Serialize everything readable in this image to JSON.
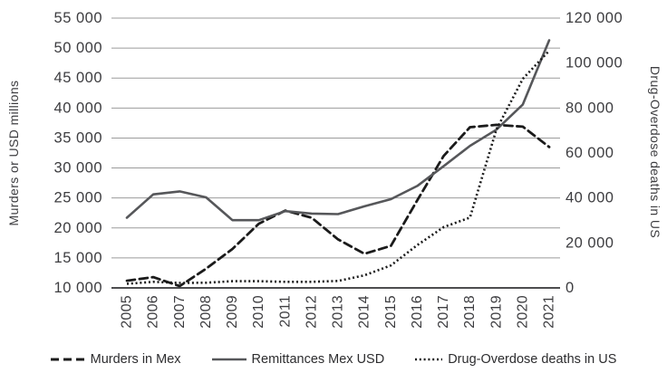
{
  "chart_data": {
    "type": "line",
    "title": "",
    "x": [
      2005,
      2006,
      2007,
      2008,
      2009,
      2010,
      2011,
      2012,
      2013,
      2014,
      2015,
      2016,
      2017,
      2018,
      2019,
      2020,
      2021
    ],
    "series": [
      {
        "name": "Murders in Mex",
        "axis": "left",
        "style": "dashed",
        "color": "#1b1b1b",
        "values": [
          11200,
          11800,
          10300,
          13200,
          16500,
          20700,
          22900,
          21700,
          18100,
          15700,
          17000,
          24600,
          32000,
          36800,
          37200,
          36900,
          33500
        ]
      },
      {
        "name": "Remittances Mex USD",
        "axis": "left",
        "style": "solid",
        "color": "#56575a",
        "values": [
          21700,
          25600,
          26100,
          25100,
          21300,
          21300,
          22800,
          22400,
          22300,
          23600,
          24800,
          27000,
          30300,
          33700,
          36400,
          40600,
          51300
        ]
      },
      {
        "name": "Drug-Overdose deaths in US",
        "axis": "right",
        "style": "dotted",
        "color": "#1b1b1b",
        "values": [
          1800,
          2700,
          2200,
          2300,
          3000,
          3000,
          2700,
          2700,
          3100,
          5600,
          10000,
          19000,
          27000,
          31300,
          70500,
          93000,
          105500
        ]
      }
    ],
    "ylabel_left": "Murders or USD millions",
    "ylabel_right": "Drug-Overdose deaths in US",
    "yleft_ticks": [
      10000,
      15000,
      20000,
      25000,
      30000,
      35000,
      40000,
      45000,
      50000,
      55000
    ],
    "yright_ticks": [
      0,
      20000,
      40000,
      60000,
      80000,
      100000,
      120000
    ],
    "yleft_range": [
      10000,
      55000
    ],
    "yright_range": [
      0,
      120000
    ],
    "grid": true,
    "legend_position": "bottom"
  },
  "colors": {
    "gridline": "#9b9b9b",
    "baseline": "#4d4d4f",
    "tick_text": "#3d3d40",
    "background": "#ffffff"
  }
}
